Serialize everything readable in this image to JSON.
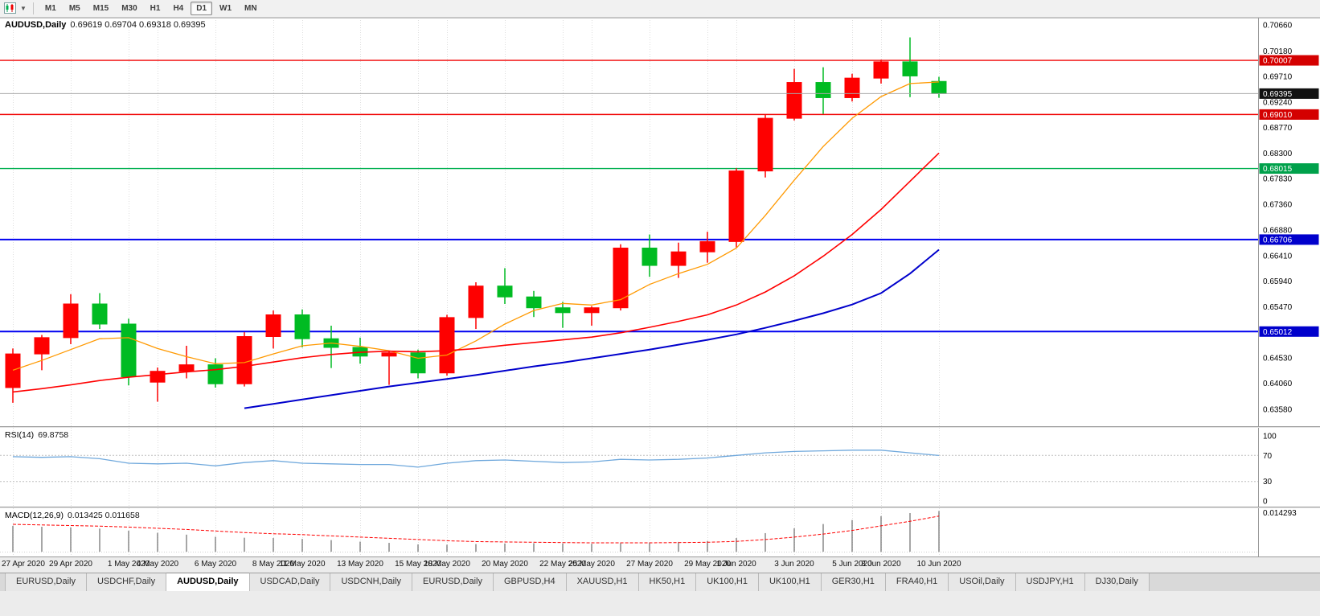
{
  "toolbar": {
    "chart_type_icon": "candlestick-chart-icon",
    "timeframes": [
      {
        "label": "M1",
        "active": false
      },
      {
        "label": "M5",
        "active": false
      },
      {
        "label": "M15",
        "active": false
      },
      {
        "label": "M30",
        "active": false
      },
      {
        "label": "H1",
        "active": false
      },
      {
        "label": "H4",
        "active": false
      },
      {
        "label": "D1",
        "active": true
      },
      {
        "label": "W1",
        "active": false
      },
      {
        "label": "MN",
        "active": false
      }
    ]
  },
  "chart_data": {
    "type": "candlestick",
    "symbol": "AUDUSD",
    "timeframe": "Daily",
    "title_symbol": "AUDUSD,Daily",
    "title_ohlc": "0.69619 0.69704 0.69318 0.69395",
    "current_bar": {
      "open": 0.69619,
      "high": 0.69704,
      "low": 0.69318,
      "close": 0.69395
    },
    "colors": {
      "up_candle": "#fe0000",
      "down_candle": "#00bb22",
      "ma_fast": "#ff9900",
      "ma_mid": "#ff0000",
      "ma_slow": "#0000cc",
      "rsi_line": "#6fa8dc",
      "macd_histogram": "#808080",
      "macd_signal": "#ff0000",
      "grid": "#dedede"
    },
    "price_axis": {
      "labels": [
        "0.70660",
        "0.70180",
        "0.69710",
        "0.69240",
        "0.68770",
        "0.68300",
        "0.67830",
        "0.67360",
        "0.66880",
        "0.66410",
        "0.65940",
        "0.65470",
        "0.65000",
        "0.64530",
        "0.64060",
        "0.63580"
      ]
    },
    "levels": [
      {
        "name": "resistance-line-1",
        "price": 0.70007,
        "label": "0.70007",
        "color": "#f00000",
        "badge_color": "#d40000",
        "width": 1.4,
        "front": false
      },
      {
        "name": "bid-price-line",
        "price": 0.69395,
        "label": "0.69395",
        "color": "#a8a8a8",
        "badge_color": "#111111",
        "width": 1,
        "front": true
      },
      {
        "name": "resistance-line-2",
        "price": 0.6901,
        "label": "0.69010",
        "color": "#f00000",
        "badge_color": "#d40000",
        "width": 1.4,
        "front": false
      },
      {
        "name": "support-line-green",
        "price": 0.68015,
        "label": "0.68015",
        "color": "#00b050",
        "badge_color": "#00a14b",
        "width": 1.4,
        "front": false
      },
      {
        "name": "support-line-blue-1",
        "price": 0.66706,
        "label": "0.66706",
        "color": "#0000f0",
        "badge_color": "#0000cc",
        "width": 2,
        "front": false
      },
      {
        "name": "support-line-blue-2",
        "price": 0.65012,
        "label": "0.65012",
        "color": "#0000f0",
        "badge_color": "#0000cc",
        "width": 2,
        "front": false
      }
    ],
    "xticks": [
      {
        "i": 0,
        "label": "27 Apr 2020"
      },
      {
        "i": 2,
        "label": "29 Apr 2020"
      },
      {
        "i": 4,
        "label": "1 May 2020"
      },
      {
        "i": 5,
        "label": "4 May 2020"
      },
      {
        "i": 7,
        "label": "6 May 2020"
      },
      {
        "i": 9,
        "label": "8 May 2020"
      },
      {
        "i": 10,
        "label": "11 May 2020"
      },
      {
        "i": 12,
        "label": "13 May 2020"
      },
      {
        "i": 14,
        "label": "15 May 2020"
      },
      {
        "i": 15,
        "label": "18 May 2020"
      },
      {
        "i": 17,
        "label": "20 May 2020"
      },
      {
        "i": 19,
        "label": "22 May 2020"
      },
      {
        "i": 20,
        "label": "25 May 2020"
      },
      {
        "i": 22,
        "label": "27 May 2020"
      },
      {
        "i": 24,
        "label": "29 May 2020"
      },
      {
        "i": 25,
        "label": "1 Jun 2020"
      },
      {
        "i": 27,
        "label": "3 Jun 2020"
      },
      {
        "i": 29,
        "label": "5 Jun 2020"
      },
      {
        "i": 30,
        "label": "8 Jun 2020"
      },
      {
        "i": 32,
        "label": "10 Jun 2020"
      }
    ],
    "candles": [
      {
        "date": "27 Apr 2020",
        "o": 0.6398,
        "h": 0.647,
        "l": 0.637,
        "c": 0.646
      },
      {
        "date": "28 Apr 2020",
        "o": 0.646,
        "h": 0.6495,
        "l": 0.643,
        "c": 0.649
      },
      {
        "date": "29 Apr 2020",
        "o": 0.649,
        "h": 0.657,
        "l": 0.6478,
        "c": 0.6552
      },
      {
        "date": "30 Apr 2020",
        "o": 0.6552,
        "h": 0.6572,
        "l": 0.6506,
        "c": 0.6515
      },
      {
        "date": "1 May 2020",
        "o": 0.6515,
        "h": 0.6525,
        "l": 0.6402,
        "c": 0.6418
      },
      {
        "date": "4 May 2020",
        "o": 0.6408,
        "h": 0.6435,
        "l": 0.6372,
        "c": 0.6428
      },
      {
        "date": "5 May 2020",
        "o": 0.6428,
        "h": 0.6475,
        "l": 0.6415,
        "c": 0.644
      },
      {
        "date": "6 May 2020",
        "o": 0.644,
        "h": 0.6452,
        "l": 0.6398,
        "c": 0.6405
      },
      {
        "date": "7 May 2020",
        "o": 0.6405,
        "h": 0.65,
        "l": 0.64,
        "c": 0.6492
      },
      {
        "date": "8 May 2020",
        "o": 0.6492,
        "h": 0.654,
        "l": 0.647,
        "c": 0.6532
      },
      {
        "date": "11 May 2020",
        "o": 0.6532,
        "h": 0.6542,
        "l": 0.6472,
        "c": 0.6488
      },
      {
        "date": "12 May 2020",
        "o": 0.6488,
        "h": 0.6512,
        "l": 0.6434,
        "c": 0.6472
      },
      {
        "date": "13 May 2020",
        "o": 0.6472,
        "h": 0.649,
        "l": 0.6442,
        "c": 0.6456
      },
      {
        "date": "14 May 2020",
        "o": 0.6456,
        "h": 0.6464,
        "l": 0.6403,
        "c": 0.6462
      },
      {
        "date": "15 May 2020",
        "o": 0.6462,
        "h": 0.6468,
        "l": 0.6415,
        "c": 0.6425
      },
      {
        "date": "18 May 2020",
        "o": 0.6425,
        "h": 0.6532,
        "l": 0.642,
        "c": 0.6527
      },
      {
        "date": "19 May 2020",
        "o": 0.6527,
        "h": 0.6592,
        "l": 0.6506,
        "c": 0.6585
      },
      {
        "date": "20 May 2020",
        "o": 0.6585,
        "h": 0.6618,
        "l": 0.6552,
        "c": 0.6565
      },
      {
        "date": "21 May 2020",
        "o": 0.6565,
        "h": 0.6576,
        "l": 0.6528,
        "c": 0.6545
      },
      {
        "date": "22 May 2020",
        "o": 0.6545,
        "h": 0.6556,
        "l": 0.6508,
        "c": 0.6536
      },
      {
        "date": "25 May 2020",
        "o": 0.6536,
        "h": 0.6548,
        "l": 0.6512,
        "c": 0.6545
      },
      {
        "date": "26 May 2020",
        "o": 0.6545,
        "h": 0.6662,
        "l": 0.654,
        "c": 0.6655
      },
      {
        "date": "27 May 2020",
        "o": 0.6655,
        "h": 0.668,
        "l": 0.6602,
        "c": 0.6623
      },
      {
        "date": "28 May 2020",
        "o": 0.6623,
        "h": 0.6665,
        "l": 0.66,
        "c": 0.6648
      },
      {
        "date": "29 May 2020",
        "o": 0.6648,
        "h": 0.6685,
        "l": 0.6628,
        "c": 0.6667
      },
      {
        "date": "1 Jun 2020",
        "o": 0.6667,
        "h": 0.6802,
        "l": 0.6656,
        "c": 0.6797
      },
      {
        "date": "2 Jun 2020",
        "o": 0.6797,
        "h": 0.69,
        "l": 0.6785,
        "c": 0.6894
      },
      {
        "date": "3 Jun 2020",
        "o": 0.6894,
        "h": 0.6985,
        "l": 0.689,
        "c": 0.696
      },
      {
        "date": "4 Jun 2020",
        "o": 0.696,
        "h": 0.6988,
        "l": 0.6902,
        "c": 0.6932
      },
      {
        "date": "5 Jun 2020",
        "o": 0.6932,
        "h": 0.6976,
        "l": 0.6925,
        "c": 0.6968
      },
      {
        "date": "8 Jun 2020",
        "o": 0.6968,
        "h": 0.7002,
        "l": 0.6958,
        "c": 0.6998
      },
      {
        "date": "9 Jun 2020",
        "o": 0.6998,
        "h": 0.7043,
        "l": 0.6933,
        "c": 0.6972
      },
      {
        "date": "10 Jun 2020",
        "o": 0.69619,
        "h": 0.69704,
        "l": 0.69318,
        "c": 0.69395
      }
    ],
    "moving_averages": [
      {
        "name": "ma-fast-orange",
        "color": "#ff9900",
        "width": 1.3,
        "values": [
          0.643,
          0.6448,
          0.6468,
          0.6488,
          0.649,
          0.647,
          0.6455,
          0.6442,
          0.6444,
          0.646,
          0.6475,
          0.648,
          0.6474,
          0.6466,
          0.6452,
          0.6458,
          0.6484,
          0.6515,
          0.654,
          0.6553,
          0.655,
          0.656,
          0.6588,
          0.6608,
          0.6625,
          0.6655,
          0.6715,
          0.678,
          0.6842,
          0.6894,
          0.6934,
          0.6958,
          0.6961
        ]
      },
      {
        "name": "ma-mid-red",
        "color": "#ff0000",
        "width": 1.6,
        "values": [
          0.639,
          0.6396,
          0.6403,
          0.6411,
          0.6417,
          0.6422,
          0.6427,
          0.6431,
          0.6437,
          0.6445,
          0.6453,
          0.6459,
          0.6463,
          0.6465,
          0.6464,
          0.6466,
          0.647,
          0.6476,
          0.6481,
          0.6486,
          0.6491,
          0.6499,
          0.6509,
          0.652,
          0.6532,
          0.655,
          0.6574,
          0.6604,
          0.664,
          0.668,
          0.6726,
          0.6778,
          0.683
        ]
      },
      {
        "name": "ma-slow-blue",
        "color": "#0000cc",
        "width": 2,
        "values": [
          null,
          null,
          null,
          null,
          null,
          null,
          null,
          null,
          0.636,
          0.6368,
          0.6376,
          0.6384,
          0.6392,
          0.64,
          0.6407,
          0.6414,
          0.6421,
          0.6429,
          0.6437,
          0.6444,
          0.6452,
          0.646,
          0.6468,
          0.6477,
          0.6486,
          0.6496,
          0.6508,
          0.6521,
          0.6535,
          0.6551,
          0.6572,
          0.6608,
          0.6652
        ]
      }
    ],
    "rsi": {
      "label": "RSI(14)",
      "value": "69.8758",
      "axis_labels": [
        "100",
        "70",
        "30",
        "0"
      ],
      "dashed_levels": [
        70,
        30
      ],
      "series": [
        68,
        67,
        68,
        65,
        58,
        57,
        58,
        54,
        59,
        62,
        58,
        57,
        56,
        56,
        52,
        58,
        62,
        63,
        61,
        59,
        60,
        64,
        63,
        64,
        66,
        70,
        74,
        76,
        77,
        78,
        78,
        74,
        69.88
      ]
    },
    "macd": {
      "label": "MACD(12,26,9)",
      "values_text": "0.013425 0.011658",
      "value_main": "0.013425",
      "value_signal": "0.011658",
      "scale_max_label": "0.014293",
      "histogram": [
        0.0085,
        0.0082,
        0.008,
        0.0076,
        0.0069,
        0.0062,
        0.0056,
        0.0049,
        0.0046,
        0.0045,
        0.0042,
        0.0038,
        0.0033,
        0.0029,
        0.0024,
        0.0023,
        0.0025,
        0.0027,
        0.0028,
        0.0027,
        0.0026,
        0.0028,
        0.003,
        0.0032,
        0.0035,
        0.0045,
        0.0061,
        0.0077,
        0.0091,
        0.0104,
        0.0117,
        0.0127,
        0.0134
      ],
      "signal": [
        0.009,
        0.0088,
        0.0086,
        0.0084,
        0.0081,
        0.0077,
        0.0073,
        0.0068,
        0.0063,
        0.0059,
        0.0056,
        0.0052,
        0.0048,
        0.0044,
        0.004,
        0.0036,
        0.0033,
        0.0032,
        0.0031,
        0.003,
        0.0029,
        0.0029,
        0.0029,
        0.003,
        0.0031,
        0.0034,
        0.004,
        0.0048,
        0.0058,
        0.007,
        0.0085,
        0.01,
        0.0117
      ]
    }
  },
  "tabs": [
    {
      "label": "EURUSD,Daily",
      "active": false
    },
    {
      "label": "USDCHF,Daily",
      "active": false
    },
    {
      "label": "AUDUSD,Daily",
      "active": true
    },
    {
      "label": "USDCAD,Daily",
      "active": false
    },
    {
      "label": "USDCNH,Daily",
      "active": false
    },
    {
      "label": "EURUSD,Daily",
      "active": false
    },
    {
      "label": "GBPUSD,H4",
      "active": false
    },
    {
      "label": "XAUUSD,H1",
      "active": false
    },
    {
      "label": "HK50,H1",
      "active": false
    },
    {
      "label": "UK100,H1",
      "active": false
    },
    {
      "label": "UK100,H1",
      "active": false
    },
    {
      "label": "GER30,H1",
      "active": false
    },
    {
      "label": "FRA40,H1",
      "active": false
    },
    {
      "label": "USOil,Daily",
      "active": false
    },
    {
      "label": "USDJPY,H1",
      "active": false
    },
    {
      "label": "DJ30,Daily",
      "active": false
    }
  ]
}
